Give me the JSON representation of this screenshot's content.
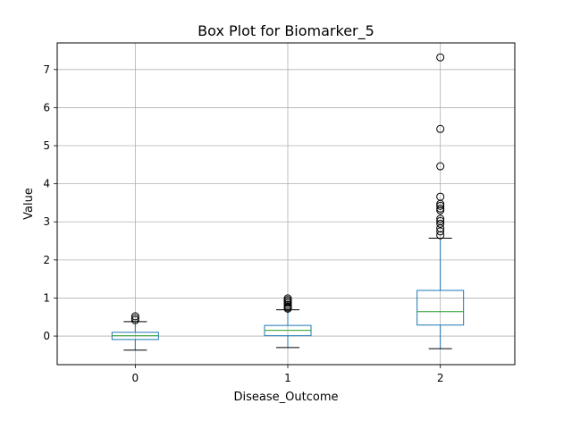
{
  "chart_data": {
    "type": "box",
    "title": "Box Plot for Biomarker_5",
    "xlabel": "Disease_Outcome",
    "ylabel": "Value",
    "categories": [
      "0",
      "1",
      "2"
    ],
    "ylim": [
      -0.75,
      7.7
    ],
    "yticks": [
      0,
      1,
      2,
      3,
      4,
      5,
      6,
      7
    ],
    "grid": true,
    "colors": {
      "box": "#1f77b4",
      "median": "#2ca02c",
      "whisker": "#1f77b4",
      "cap": "#000000",
      "flier": "#000000",
      "grid": "#b0b0b0"
    },
    "boxes": [
      {
        "category": "0",
        "whislo": -0.37,
        "q1": -0.09,
        "median": 0.01,
        "q3": 0.1,
        "whishi": 0.38,
        "fliers": [
          0.42,
          0.47,
          0.52
        ]
      },
      {
        "category": "1",
        "whislo": -0.3,
        "q1": 0.01,
        "median": 0.15,
        "q3": 0.28,
        "whishi": 0.69,
        "fliers": [
          0.72,
          0.75,
          0.78,
          0.82,
          0.87,
          0.91,
          0.95,
          0.99
        ]
      },
      {
        "category": "2",
        "whislo": -0.33,
        "q1": 0.29,
        "median": 0.64,
        "q3": 1.2,
        "whishi": 2.57,
        "fliers": [
          2.65,
          2.75,
          2.83,
          2.95,
          3.02,
          3.08,
          3.3,
          3.35,
          3.42,
          3.47,
          3.66,
          4.46,
          5.44,
          7.32
        ]
      }
    ]
  }
}
